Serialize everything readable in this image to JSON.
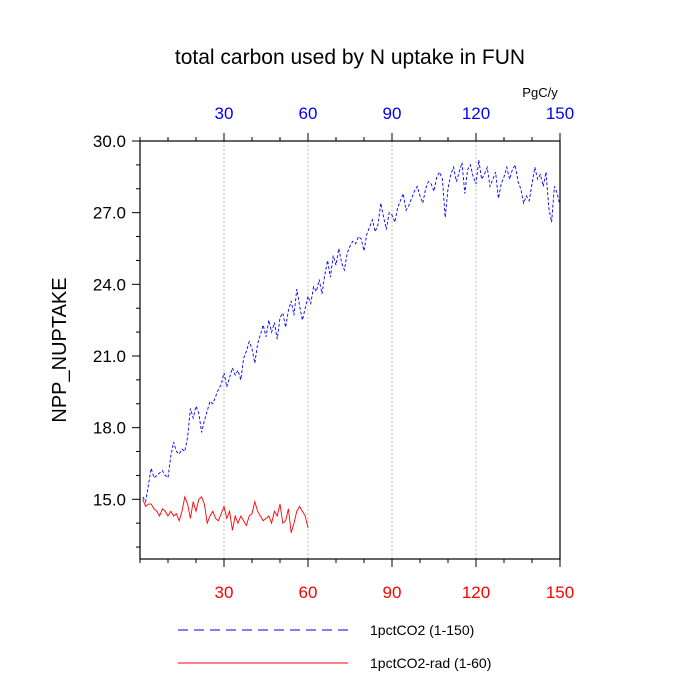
{
  "chart_data": {
    "type": "line",
    "title": "total carbon used by N uptake in FUN",
    "ylabel": "NPP_NUPTAKE",
    "top_axis_unit": "PgC/y",
    "xlim": [
      0,
      150
    ],
    "ylim": [
      12.5,
      30.0
    ],
    "x_ticks": [
      30,
      60,
      90,
      120,
      150
    ],
    "x_tick_labels": [
      "30",
      "60",
      "90",
      "120",
      "150"
    ],
    "y_ticks": [
      15.0,
      18.0,
      21.0,
      24.0,
      27.0,
      30.0
    ],
    "y_tick_labels": [
      "15.0",
      "18.0",
      "21.0",
      "24.0",
      "27.0",
      "30.0"
    ],
    "vertical_grid": true,
    "legend_position": "bottom",
    "colors": {
      "bottom_axis": "#ff0000",
      "top_axis": "#0000ff"
    },
    "series": [
      {
        "name": "1pctCO2 (1-150)",
        "color": "#0000ff",
        "dash": "dashed",
        "x_start": 1,
        "values": [
          15.1,
          14.9,
          15.6,
          16.3,
          15.9,
          16.0,
          16.1,
          16.2,
          16.0,
          15.9,
          16.8,
          17.4,
          17.0,
          16.9,
          17.1,
          17.0,
          17.6,
          18.8,
          18.4,
          18.9,
          18.6,
          17.8,
          18.3,
          18.7,
          19.1,
          19.0,
          19.3,
          19.6,
          19.8,
          20.3,
          19.7,
          20.1,
          20.5,
          20.2,
          20.4,
          20.0,
          20.9,
          21.2,
          21.6,
          21.3,
          20.7,
          21.5,
          21.9,
          22.3,
          21.8,
          22.5,
          22.0,
          22.4,
          21.7,
          22.6,
          22.8,
          22.2,
          22.9,
          23.3,
          22.7,
          23.8,
          23.1,
          22.5,
          23.0,
          23.5,
          23.2,
          23.9,
          23.7,
          24.2,
          23.6,
          24.4,
          25.0,
          24.3,
          25.2,
          24.8,
          25.5,
          24.9,
          24.6,
          25.3,
          25.6,
          25.8,
          25.7,
          26.0,
          25.9,
          25.4,
          26.1,
          26.4,
          26.7,
          26.2,
          26.5,
          27.4,
          26.8,
          26.3,
          27.0,
          26.9,
          26.6,
          27.2,
          27.5,
          27.8,
          27.1,
          27.3,
          27.6,
          27.9,
          28.1,
          27.7,
          27.4,
          28.0,
          28.3,
          28.2,
          27.9,
          28.5,
          28.7,
          28.4,
          26.8,
          28.0,
          28.6,
          28.9,
          28.3,
          28.7,
          29.1,
          27.8,
          28.8,
          29.0,
          28.5,
          28.2,
          29.2,
          28.4,
          28.6,
          28.9,
          28.1,
          28.4,
          28.7,
          27.6,
          28.2,
          28.5,
          28.9,
          28.4,
          28.8,
          29.0,
          28.3,
          28.0,
          27.4,
          27.7,
          27.5,
          28.2,
          28.9,
          28.4,
          28.6,
          28.1,
          28.7,
          27.2,
          26.6,
          28.1,
          27.8,
          27.3
        ]
      },
      {
        "name": "1pctCO2-rad (1-60)",
        "color": "#ff0000",
        "dash": "solid",
        "x_start": 1,
        "values": [
          15.0,
          14.7,
          14.8,
          14.8,
          14.6,
          14.5,
          14.3,
          14.6,
          14.5,
          14.3,
          14.5,
          14.3,
          14.4,
          14.1,
          14.5,
          15.1,
          14.8,
          14.2,
          14.9,
          14.5,
          15.0,
          15.1,
          14.8,
          14.0,
          14.3,
          14.5,
          14.2,
          14.1,
          14.4,
          14.7,
          14.2,
          14.5,
          13.7,
          14.3,
          14.0,
          14.3,
          14.1,
          13.9,
          14.3,
          14.4,
          14.9,
          14.5,
          14.3,
          14.1,
          14.2,
          14.3,
          14.0,
          14.5,
          14.3,
          14.8,
          14.0,
          14.1,
          14.6,
          13.6,
          14.0,
          14.5,
          14.7,
          14.5,
          14.3,
          13.8
        ]
      }
    ]
  }
}
